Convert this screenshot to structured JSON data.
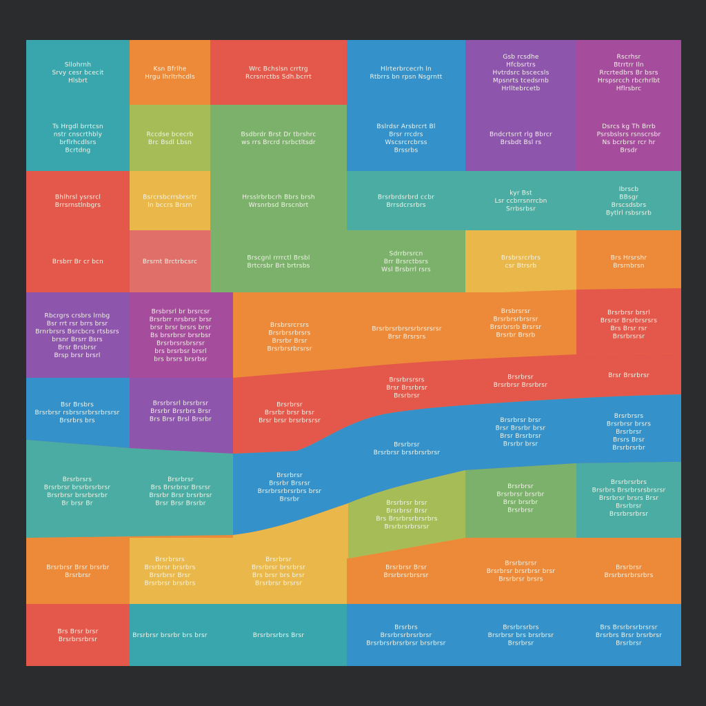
{
  "colors": {
    "background": "#2b2c2e",
    "teal": "#39a6ae",
    "orange": "#ec8a3a",
    "red": "#e3584a",
    "blue": "#3591c9",
    "purple": "#8e55ad",
    "magenta": "#a54c9c",
    "green": "#7bb16b",
    "lime": "#a6bd57",
    "yellow": "#eab84a",
    "pink": "#e06f6a",
    "sea": "#4aaca2",
    "text": "#f3f5e9"
  },
  "cells": [
    {
      "color": "teal",
      "lines": [
        "Sllohrnh",
        "Srvy cesr bcecit",
        "Hlsbrt"
      ]
    },
    {
      "color": "orange",
      "lines": [
        "Ksn Bfrlhe",
        "Hrgu lhrltrhcdls"
      ]
    },
    {
      "color": "red",
      "lines": [
        "Wrc Bchslsn crrtrg",
        "Rcrsnrctbs Sdh.bcrrt"
      ]
    },
    {
      "color": "blue",
      "lines": [
        "Hlrterbrcecrh ln",
        "Rtbrrs bn rpsn Nsgrntt"
      ]
    },
    {
      "color": "purple",
      "lines": [
        "Gsb rcsdhe",
        "Hfcbsrtrs",
        "Hvtrdsrc bscecsls",
        "Mpsnrts tcedsrnb",
        "Hrlltebrcetb"
      ]
    },
    {
      "color": "magenta",
      "lines": [
        "Rscrhsr",
        "Btrrtrr Iln",
        "Rrcrtedbrs Br bsrs",
        "Hrspsrcch rbcrhrlbt",
        "Hflrsbrc"
      ]
    },
    {
      "color": "teal",
      "lines": [
        "Ts Hrgdl brrtcsn",
        "nstr cnscrthbly",
        "brflrhcdlsrs",
        "Bcrtdng"
      ]
    },
    {
      "color": "lime",
      "lines": [
        "Rccdse bcecrb",
        "Brc Bsdl Lbsn"
      ]
    },
    {
      "color": "green",
      "lines": [
        "Bsdbrdr Brst   Dr tbrshrc",
        "ws rrs Brcrd rsrbctltsdr"
      ]
    },
    {
      "color": "blue",
      "lines": [
        "Bslrdsr Arsbrcrt Bl",
        "Brsr rrcdrs",
        "Wscsrcrcbrss",
        "Brssrbs"
      ]
    },
    {
      "color": "purple",
      "lines": [
        "Bndcrtsrrt rlg Bbrcr",
        "Brsbdt Bsl rs"
      ]
    },
    {
      "color": "magenta",
      "lines": [
        "Dsrcs kg Th Brrb",
        "Psrsbslsrs rsnscrsbr",
        "Ns bcrbrsr rcr hr",
        "Brsdr"
      ]
    },
    {
      "color": "red",
      "lines": [
        "Bhlhrsl ysrsrcl",
        "Brrsrnstlnbgrs"
      ]
    },
    {
      "color": "yellow",
      "lines": [
        "Bsrcrsbcrrsbrsrtr",
        "ln bccrs Brsrn"
      ]
    },
    {
      "color": "green",
      "lines": [
        "Hrsslrbrbcrh Bbrs brsh",
        "Wrsnrbsd Brscnbrt"
      ]
    },
    {
      "color": "sea",
      "lines": [
        "Brsrbrdsrbrd ccbr",
        "Brrsdcrsrbrs"
      ]
    },
    {
      "color": "sea",
      "lines": [
        "kyr Bst",
        "Lsr ccbrrsnrrcbn",
        "Srrbsrbsr"
      ]
    },
    {
      "color": "sea",
      "lines": [
        "Ibrscb",
        "BBsgr",
        "Brscsdsbrs",
        "Bytlrl rsbsrsrb"
      ]
    },
    {
      "color": "red",
      "lines": [
        "Brsbrr Br cr bcn"
      ]
    },
    {
      "color": "pink",
      "lines": [
        "Brsrnt Brctrbcsrc"
      ]
    },
    {
      "color": "green",
      "lines": [
        "Brscgnl rrrrctl Brsbl",
        "Brtcrsbr Brt brtrsbs"
      ]
    },
    {
      "color": "green",
      "lines": [
        "Sdrrbrsrcn",
        "Brr Brsrctbsrs",
        "Wsl Brsbrrl rsrs"
      ]
    },
    {
      "color": "yellow",
      "lines": [
        "Brsbrsrcrbrs",
        "csr Btrsrb"
      ]
    },
    {
      "color": "orange",
      "lines": [
        "Brs Hrsrshr",
        "Brsrnbrsn"
      ]
    }
  ],
  "band_labels": [
    {
      "band": "purple",
      "lines": [
        "Rbcrgrs crsbrs lrnbg",
        "Bsr rrt rsr brrs brsr",
        "Brnrbrsrs Bsrcbcrs rtsbsrs",
        "brsnr Brsrr Bsrs",
        "Brsr Brsbrsr",
        "Brsp brsr brsrl"
      ]
    },
    {
      "band": "purple",
      "lines": [
        "Brsbrsrl br brsrcsr",
        "Brsrbrr nrsbrsr brsr",
        "brsr brsr brsrs brsr",
        "Bs brsrbrsr brsrbsr",
        "Brsrbrsrsbrsrsr",
        "brs brsrbsr brsrl",
        "brs brsrs brsrbsr"
      ]
    },
    {
      "band": "orange",
      "lines": [
        "Brsbrsrcrsrs",
        "Brsrbrsrbrsrs",
        "Brsrbr Brsr",
        "Brsrbrsrbrsrsr"
      ]
    },
    {
      "band": "orange",
      "lines": [
        "Brsrbrsrbrsrsrbrsrsrsr",
        "Brsr Brsrsrs"
      ]
    },
    {
      "band": "orange",
      "lines": [
        "Brsbrsrsr",
        "Brsrbrsrbrsrsr",
        "Brsrbrsrb Brsrsr",
        "Brsrbr Brsrb"
      ]
    },
    {
      "band": "red",
      "lines": [
        "Brsrbrsr brsrl",
        "Brsrsr Brsrbrsrsrs",
        "Brs Brsr rsr",
        "Brsrbrsrsr"
      ]
    },
    {
      "band": "blue",
      "lines": [
        "Bsr Brsbrs",
        "Brsrbrsr rsbrsrsrbrsrbrsrsr",
        "Brsrbrs brs"
      ]
    },
    {
      "band": "purple",
      "lines": [
        "Brsrbrsrl brsrbrsr",
        "Brsrbr Brsrbrs Brsr",
        "Brs Brsr Brsl Brsrbr"
      ]
    },
    {
      "band": "red",
      "lines": [
        "Brsrbrsr",
        "Brsrbr brsr brsr",
        "Brsr brsr brsrbrsrsr"
      ]
    },
    {
      "band": "red",
      "lines": [
        "Brsrbrsrsrs",
        "Brsr Brsrbrsr",
        "Brsrbrsr"
      ]
    },
    {
      "band": "red",
      "lines": [
        "Brsrbrsr",
        "Brsrbrsr Brsrbrsr"
      ]
    },
    {
      "band": "red",
      "lines": [
        "Brsr Brsrbrsr"
      ]
    },
    {
      "band": "blue",
      "lines": [
        "Brsrbrsr",
        "Brsrbr Brsrsr",
        "Brsrbrsrbrsrbrs brsr",
        "Brsrbr"
      ]
    },
    {
      "band": "blue",
      "lines": [
        "Brsrbrsr",
        "Brsrbrsr brsrbrsrbrsr"
      ]
    },
    {
      "band": "blue",
      "lines": [
        "Brsrbrsr brsr",
        "Brsr Brsrbr brsr",
        "Brsr Brsrbrsr",
        "Brsrbr brsr"
      ]
    },
    {
      "band": "blue",
      "lines": [
        "Brsrbrsrs",
        "Brsrbrsr brsrs",
        "Brsrbrsr",
        "Brsrs Brsr",
        "Brsrbrsrbr"
      ]
    }
  ],
  "lower_cells": [
    {
      "color": "sea",
      "lines": [
        "Brsrbrsrs",
        "Brsrbrsr brsrbrsrbrsr",
        "Brsrbrsr brsrbrsrbr",
        "Br brsr Br"
      ]
    },
    {
      "color": "sea",
      "lines": [
        "Brsrbrsr",
        "Brs Brsrbrsr Brsrsr",
        "Brsrbr Brsr brsrbrsr",
        "Brsr Brsr Brsrbr"
      ]
    },
    {
      "color": "yellow",
      "lines": [
        "Brsrbrsr brsr",
        "Brsrbrsr Brsr",
        "Brs Brsrbrsrbrsrbrs",
        "Brsrbrsrbrsrsr"
      ]
    },
    {
      "color": "green",
      "lines": [
        "Brsrbrsr",
        "Brsrbrsr brsrbr",
        "Brsr brsrbr",
        "Brsrbrsr"
      ]
    },
    {
      "color": "sea",
      "lines": [
        "Brsrbrsrbrs",
        "Brsrbrs Brsrbrsrsbrsrsr",
        "Brsrbrsr brsrs Brsr",
        "Brsrbrsr",
        "Brsrbrsrbrsr"
      ]
    },
    {
      "color": "orange",
      "lines": [
        "Brsrbrsr Brsr brsrbr",
        "Brsrbrsr"
      ]
    },
    {
      "color": "yellow",
      "lines": [
        "Brsrbrsrs",
        "Brsrbrsr brsrbrs",
        "Brsrbrsr Brsr",
        "Brsrbrsr brsrbrs"
      ]
    },
    {
      "color": "yellow",
      "lines": [
        "Brsrbrsr",
        "Brsrbrsr brsrbrsr",
        "Brs brsr brs brsr",
        "Brsrbrsr brsrsr"
      ]
    },
    {
      "color": "orange",
      "lines": [
        "Brsrbrsr Brsr",
        "Brsrbrsrbrsrsr"
      ]
    },
    {
      "color": "orange",
      "lines": [
        "Brsrbrsrsr",
        "Brsrbrsr brsrbrsr brsr",
        "Brsrbrsr brsrs"
      ]
    },
    {
      "color": "orange",
      "lines": [
        "Brsrbrsr",
        "Brsrbrsrbrsrbrs"
      ]
    },
    {
      "color": "red",
      "lines": [
        "Brs Brsr brsr",
        "Brsrbrsrbrsr"
      ]
    },
    {
      "color": "teal",
      "lines": [
        "Brsrbrsr brsrbr brs brsr"
      ]
    },
    {
      "color": "teal",
      "lines": [
        "Brsrbrsrbrs Brsr"
      ]
    },
    {
      "color": "blue",
      "lines": [
        "Brsrbrs",
        "Brsrbrsrbrsrbrsr",
        "Brsrbrsrbrsrbrsr brsrbrsr"
      ]
    },
    {
      "color": "blue",
      "lines": [
        "Brsrbrsrbrs",
        "Brsrbrsr brs brsrbrsr",
        "Brsrbrsr"
      ]
    },
    {
      "color": "blue",
      "lines": [
        "Brs Brsrbrsrbrsrsr",
        "Brsrbrs Brsr brsrbrsr",
        "Brsrbrsr"
      ]
    }
  ]
}
